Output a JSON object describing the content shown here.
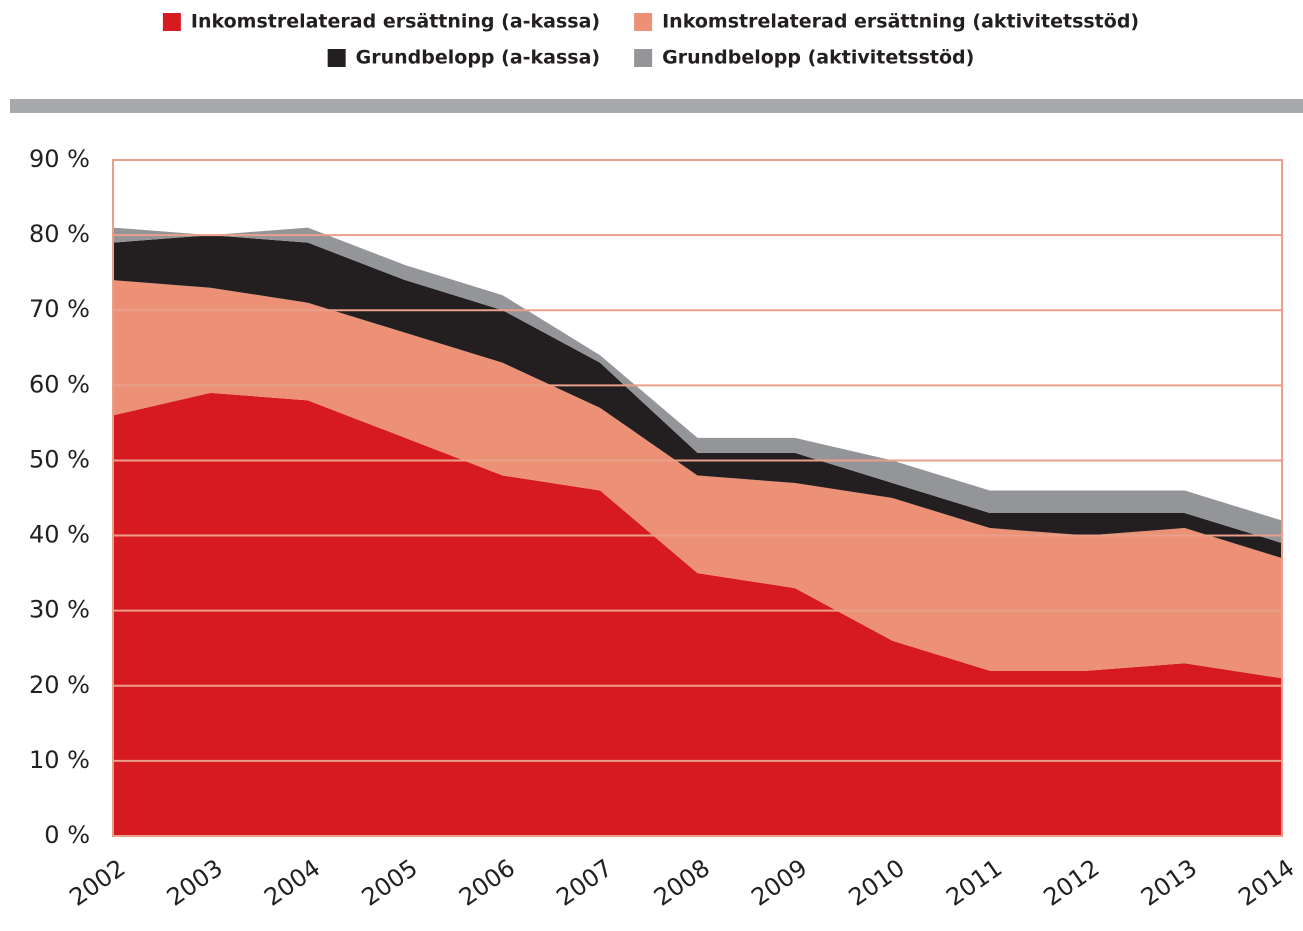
{
  "chart_data": {
    "type": "stacked_area",
    "categories": [
      "2002",
      "2003",
      "2004",
      "2005",
      "2006",
      "2007",
      "2008",
      "2009",
      "2010",
      "2011",
      "2012",
      "2013",
      "2014"
    ],
    "series": [
      {
        "name": "Inkomstrelaterad ersättning (a-kassa)",
        "color": "#d71920",
        "values": [
          56,
          59,
          58,
          53,
          48,
          46,
          35,
          33,
          26,
          22,
          22,
          23,
          21
        ]
      },
      {
        "name": "Inkomstrelaterad ersättning (aktivitetsstöd)",
        "color": "#ec9076",
        "values": [
          18,
          14,
          13,
          14,
          15,
          11,
          13,
          14,
          19,
          19,
          18,
          18,
          16
        ]
      },
      {
        "name": "Grundbelopp (a-kassa)",
        "color": "#231f20",
        "values": [
          5,
          7,
          8,
          7,
          7,
          6,
          3,
          4,
          2,
          2,
          3,
          2,
          2
        ]
      },
      {
        "name": "Grundbelopp (aktivitetsstöd)",
        "color": "#939598",
        "values": [
          2,
          0,
          2,
          2,
          2,
          1,
          2,
          2,
          3,
          3,
          3,
          3,
          3
        ]
      }
    ],
    "ylim": [
      0,
      90
    ],
    "yticks": [
      {
        "value": 0,
        "label": "0 %"
      },
      {
        "value": 10,
        "label": "10 %"
      },
      {
        "value": 20,
        "label": "20 %"
      },
      {
        "value": 30,
        "label": "30 %"
      },
      {
        "value": 40,
        "label": "40 %"
      },
      {
        "value": 50,
        "label": "50 %"
      },
      {
        "value": 60,
        "label": "60 %"
      },
      {
        "value": 70,
        "label": "70 %"
      },
      {
        "value": 80,
        "label": "80 %"
      },
      {
        "value": 90,
        "label": "90 %"
      }
    ],
    "grid": true,
    "grid_color": "#e8a08a"
  }
}
